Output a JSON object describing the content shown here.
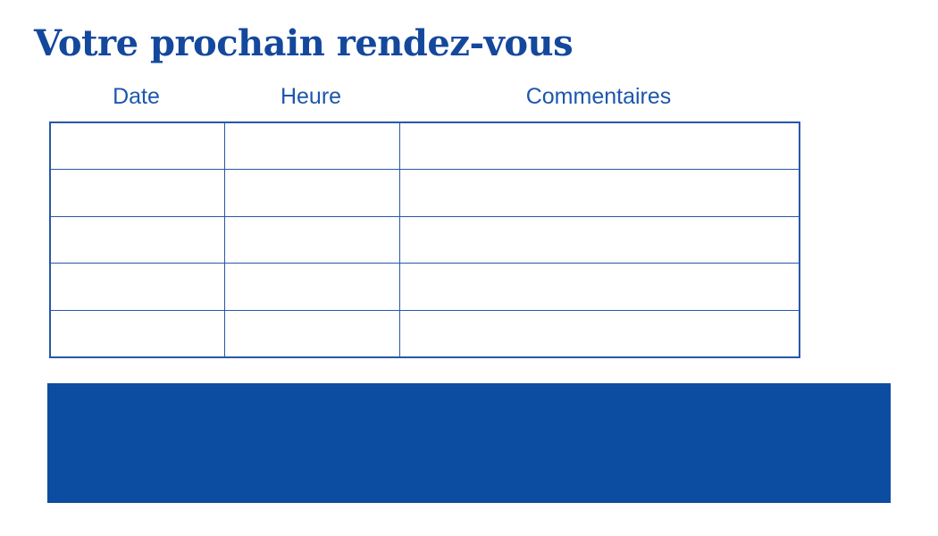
{
  "page": {
    "title": "Votre prochain rendez-vous"
  },
  "table": {
    "headers": [
      "Date",
      "Heure",
      "Commentaires"
    ],
    "rows": [
      [
        "",
        "",
        ""
      ],
      [
        "",
        "",
        ""
      ],
      [
        "",
        "",
        ""
      ],
      [
        "",
        "",
        ""
      ],
      [
        "",
        "",
        ""
      ]
    ]
  },
  "colors": {
    "title": "#14489C",
    "header_text": "#1D57AC",
    "table_border": "#2857A8",
    "banner": "#0C4DA2",
    "background": "#FFFFFF"
  }
}
